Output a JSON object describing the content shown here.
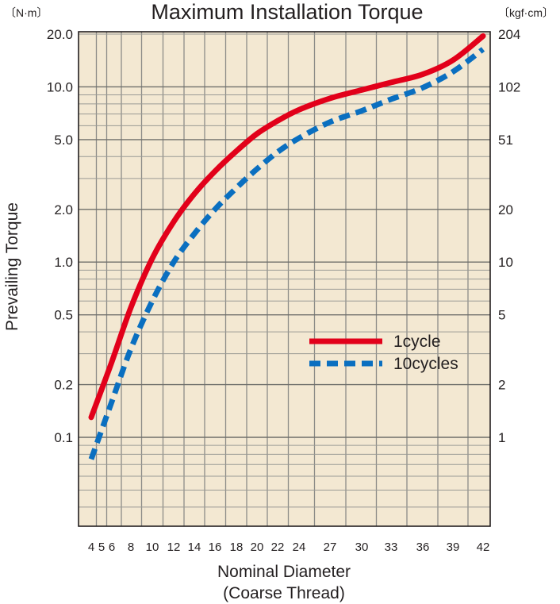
{
  "chart_data": {
    "type": "line",
    "title": "Maximum Installation Torque",
    "left_unit": "〔N·m〕",
    "right_unit": "〔kgf·cm〕",
    "ylabel": "Prevailing Torque",
    "xlabel_line1": "Nominal Diameter",
    "xlabel_line2": "(Coarse Thread)",
    "y_scale": "log",
    "ylim": [
      0.03,
      20
    ],
    "grid": true,
    "background": "#f3e8d2",
    "x_ticks": [
      "4",
      "5",
      "6",
      "8",
      "10",
      "12",
      "14",
      "16",
      "18",
      "20",
      "22",
      "24",
      "27",
      "30",
      "33",
      "36",
      "39",
      "42"
    ],
    "y_ticks_left": [
      {
        "value": 20,
        "label": "20.0"
      },
      {
        "value": 10,
        "label": "10.0"
      },
      {
        "value": 5,
        "label": "5.0"
      },
      {
        "value": 2,
        "label": "2.0"
      },
      {
        "value": 1,
        "label": "1.0"
      },
      {
        "value": 0.5,
        "label": "0.5"
      },
      {
        "value": 0.2,
        "label": "0.2"
      },
      {
        "value": 0.1,
        "label": "0.1"
      }
    ],
    "y_ticks_right": [
      {
        "value": 20,
        "label": "204"
      },
      {
        "value": 10,
        "label": "102"
      },
      {
        "value": 5,
        "label": "51"
      },
      {
        "value": 2,
        "label": "20"
      },
      {
        "value": 1,
        "label": "10"
      },
      {
        "value": 0.5,
        "label": "5"
      },
      {
        "value": 0.2,
        "label": "2"
      },
      {
        "value": 0.1,
        "label": "1"
      }
    ],
    "legend_position": "center-right",
    "series": [
      {
        "name": "1cycle",
        "color": "#e2001a",
        "style": "solid",
        "points": [
          [
            4,
            0.13
          ],
          [
            6,
            0.27
          ],
          [
            8,
            0.55
          ],
          [
            10,
            1.05
          ],
          [
            12,
            1.7
          ],
          [
            14,
            2.45
          ],
          [
            16,
            3.3
          ],
          [
            18,
            4.3
          ],
          [
            20,
            5.4
          ],
          [
            22,
            6.4
          ],
          [
            24,
            7.4
          ],
          [
            27,
            8.6
          ],
          [
            30,
            9.6
          ],
          [
            33,
            10.6
          ],
          [
            36,
            11.8
          ],
          [
            39,
            14.2
          ],
          [
            42,
            19.5
          ]
        ]
      },
      {
        "name": "10cycles",
        "color": "#0a6fc0",
        "style": "dashed",
        "points": [
          [
            4,
            0.075
          ],
          [
            6,
            0.16
          ],
          [
            8,
            0.32
          ],
          [
            10,
            0.6
          ],
          [
            12,
            1.0
          ],
          [
            14,
            1.45
          ],
          [
            16,
            2.0
          ],
          [
            18,
            2.65
          ],
          [
            20,
            3.4
          ],
          [
            22,
            4.25
          ],
          [
            24,
            5.1
          ],
          [
            27,
            6.3
          ],
          [
            30,
            7.3
          ],
          [
            33,
            8.5
          ],
          [
            36,
            9.9
          ],
          [
            39,
            12.2
          ],
          [
            42,
            16.4
          ]
        ]
      }
    ]
  }
}
